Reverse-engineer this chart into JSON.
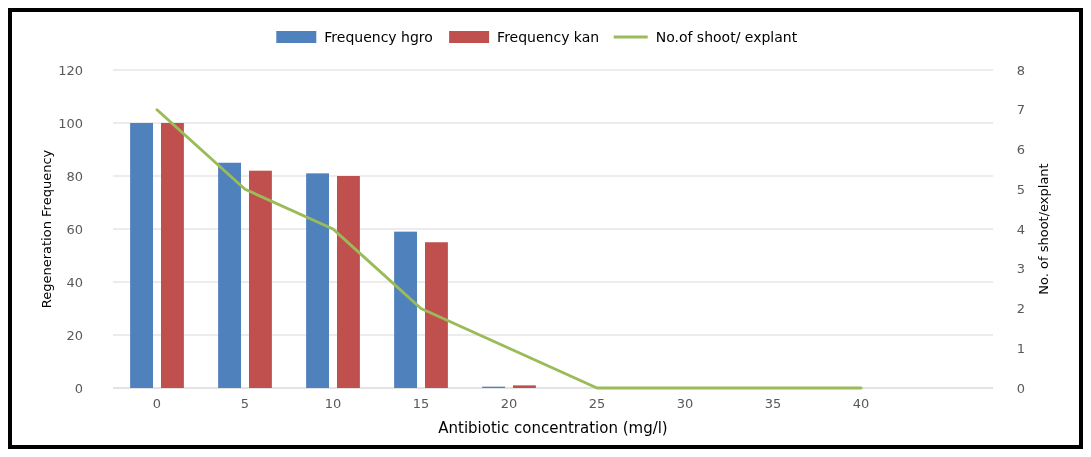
{
  "chart_data": {
    "type": "bar",
    "xlabel": "Antibiotic concentration (mg/l)",
    "ylabel": "Regeneration Frequency",
    "y2label": "No. of shoot/explant",
    "categories": [
      "0",
      "5",
      "10",
      "15",
      "20",
      "25",
      "30",
      "35",
      "40",
      null
    ],
    "series": [
      {
        "name": "Frequency hgro",
        "color": "#4f81bd",
        "values": [
          100,
          85,
          81,
          59,
          0.5,
          0,
          0,
          0,
          0,
          null
        ]
      },
      {
        "name": "Frequency kan",
        "color": "#c0504d",
        "values": [
          100,
          82,
          80,
          55,
          1,
          0,
          0,
          0,
          0,
          null
        ]
      },
      {
        "name": "No.of shoot/ explant",
        "type": "line",
        "axis": "y2",
        "color": "#9bbb59",
        "values": [
          7,
          5,
          4,
          2,
          1,
          0,
          0,
          0,
          0,
          null
        ]
      }
    ],
    "ylim": [
      0,
      120
    ],
    "yticks": [
      0,
      20,
      40,
      60,
      80,
      100,
      120
    ],
    "y2lim": [
      0,
      8
    ],
    "y2ticks": [
      0,
      1,
      2,
      3,
      4,
      5,
      6,
      7,
      8
    ],
    "grid": "y",
    "legend": "top"
  }
}
